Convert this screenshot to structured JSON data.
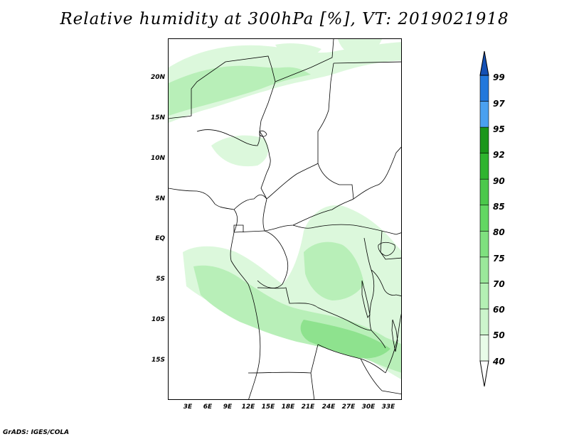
{
  "title": "Relative humidity at 300hPa [%], VT: 2019021918",
  "credit": "GrADS: IGES/COLA",
  "map": {
    "lat_labels": [
      "20N",
      "15N",
      "10N",
      "5N",
      "EQ",
      "5S",
      "10S",
      "15S"
    ],
    "lon_labels": [
      "3E",
      "6E",
      "9E",
      "12E",
      "15E",
      "18E",
      "21E",
      "24E",
      "27E",
      "30E",
      "33E"
    ]
  },
  "colorbar": {
    "levels": [
      "40",
      "50",
      "60",
      "70",
      "75",
      "80",
      "85",
      "90",
      "92",
      "95",
      "97",
      "99"
    ],
    "colors": [
      "#e8fce8",
      "#ccf5cc",
      "#b4f0b4",
      "#9be89b",
      "#7fe07f",
      "#63d763",
      "#4bc84b",
      "#2fb42f",
      "#1a961a",
      "#4aa0f0",
      "#2278dc",
      "#1450b4"
    ]
  },
  "shading_colors": {
    "light": "#dcf8dc",
    "medium": "#b8efb8",
    "strong": "#8ee28e",
    "deep": "#6fd66f"
  }
}
